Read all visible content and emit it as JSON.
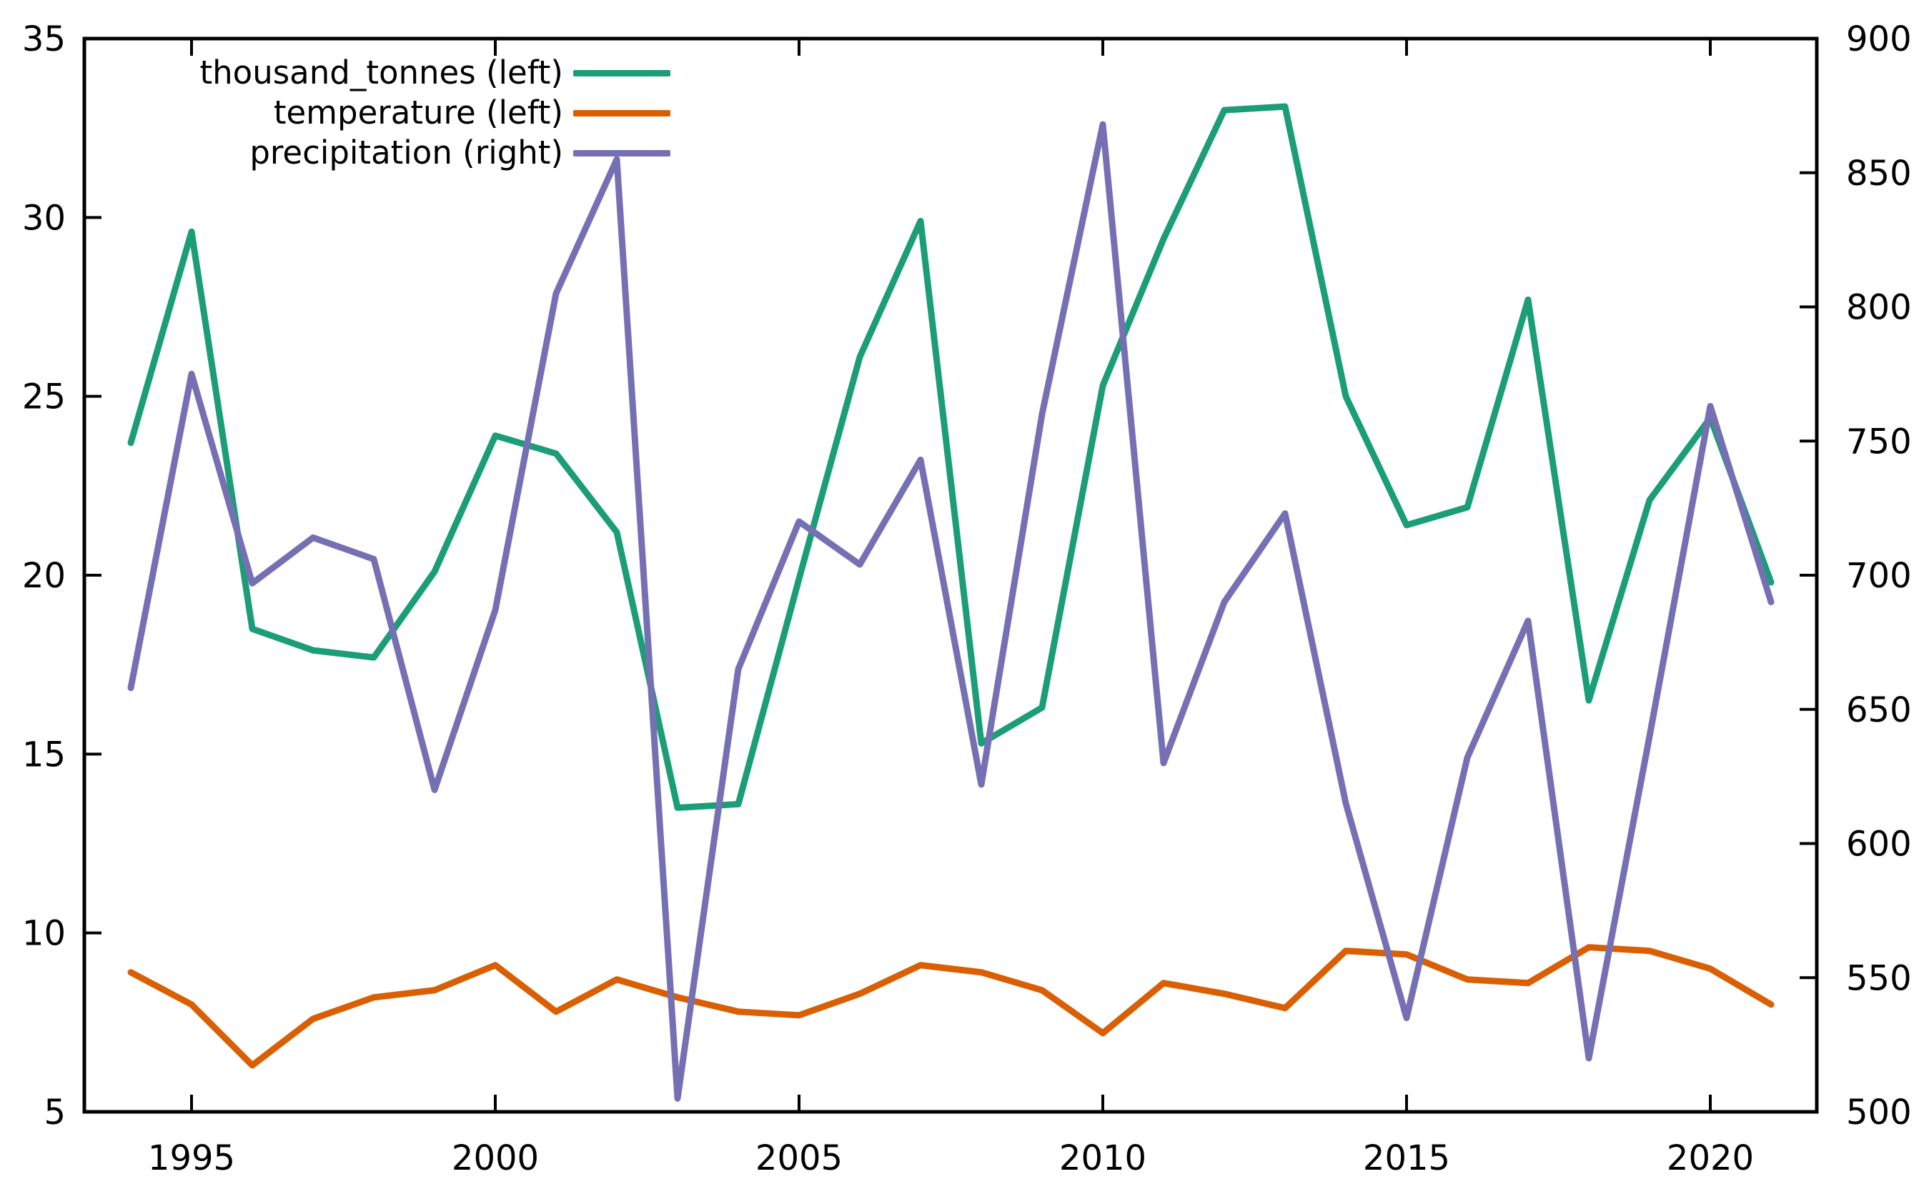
{
  "chart_data": {
    "type": "line",
    "title": "",
    "grid": false,
    "legend_position": "top-left-inside",
    "x": [
      1994,
      1995,
      1996,
      1997,
      1998,
      1999,
      2000,
      2001,
      2002,
      2003,
      2004,
      2005,
      2006,
      2007,
      2008,
      2009,
      2010,
      2011,
      2012,
      2013,
      2014,
      2015,
      2016,
      2017,
      2018,
      2019,
      2020,
      2021
    ],
    "x_ticks": [
      1995,
      2000,
      2005,
      2010,
      2015,
      2020
    ],
    "x_tick_labels": [
      "1995",
      "2000",
      "2005",
      "2010",
      "2015",
      "2020"
    ],
    "left_axis": {
      "min": 5,
      "max": 35,
      "ticks": [
        5,
        10,
        15,
        20,
        25,
        30,
        35
      ],
      "tick_labels": [
        "5",
        "10",
        "15",
        "20",
        "25",
        "30",
        "35"
      ]
    },
    "right_axis": {
      "min": 500,
      "max": 900,
      "ticks": [
        500,
        550,
        600,
        650,
        700,
        750,
        800,
        850,
        900
      ],
      "tick_labels": [
        "500",
        "550",
        "600",
        "650",
        "700",
        "750",
        "800",
        "850",
        "900"
      ]
    },
    "series": [
      {
        "name": "thousand_tonnes (left)",
        "axis": "left",
        "color": "#1b9e77",
        "values": [
          23.7,
          29.6,
          18.5,
          17.9,
          17.7,
          20.1,
          23.9,
          23.4,
          21.2,
          13.5,
          13.6,
          19.9,
          26.1,
          29.9,
          15.3,
          16.3,
          25.3,
          29.4,
          33.0,
          33.1,
          25.0,
          21.4,
          21.9,
          27.7,
          16.5,
          22.1,
          24.4,
          19.8
        ]
      },
      {
        "name": "temperature (left)",
        "axis": "left",
        "color": "#d95f02",
        "values": [
          8.9,
          8.0,
          6.3,
          7.6,
          8.2,
          8.4,
          9.1,
          7.8,
          8.7,
          8.2,
          7.8,
          7.7,
          8.3,
          9.1,
          8.9,
          8.4,
          7.2,
          8.6,
          8.3,
          7.9,
          9.5,
          9.4,
          8.7,
          8.6,
          9.6,
          9.5,
          9.0,
          8.0
        ]
      },
      {
        "name": "precipitation (right)",
        "axis": "right",
        "color": "#7570b3",
        "values": [
          658,
          775,
          697,
          714,
          706,
          620,
          687,
          805,
          855,
          505,
          665,
          720,
          704,
          743,
          622,
          760,
          868,
          630,
          690,
          723,
          615,
          535,
          632,
          683,
          520,
          640,
          763,
          690
        ]
      }
    ]
  },
  "colors": {
    "axis": "#000000",
    "tick_text": "#000000",
    "background": "#ffffff"
  }
}
